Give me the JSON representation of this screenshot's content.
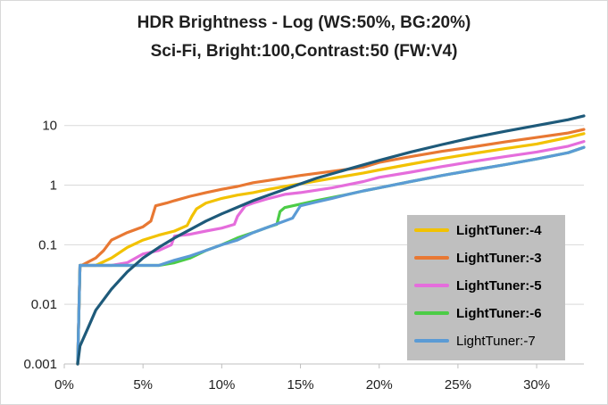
{
  "chart_data": {
    "type": "line",
    "title_lines": [
      "HDR Brightness - Log (WS:50%, BG:20%)",
      "Sci-Fi, Bright:100,Contrast:50 (FW:V4)"
    ],
    "xlabel": "",
    "ylabel": "",
    "x_scale": "linear",
    "y_scale": "log",
    "xlim": [
      0,
      33
    ],
    "ylim": [
      0.001,
      50
    ],
    "x_ticks": [
      0,
      5,
      10,
      15,
      20,
      25,
      30
    ],
    "x_tick_labels": [
      "0%",
      "5%",
      "10%",
      "15%",
      "20%",
      "25%",
      "30%"
    ],
    "y_ticks": [
      0.001,
      0.01,
      0.1,
      1,
      10
    ],
    "y_tick_labels": [
      "0.001",
      "0.01",
      "0.1",
      "1",
      "10"
    ],
    "grid": "horizontal",
    "legend_position": "lower-right",
    "series": [
      {
        "name": "LightTuner:-4",
        "color": "#f2c200",
        "bold": true,
        "x": [
          0.85,
          1.0,
          1.1,
          2.0,
          3.0,
          4.0,
          5.0,
          6.0,
          7.0,
          7.8,
          8.1,
          8.4,
          9.0,
          10.0,
          11.0,
          12.0,
          13.0,
          14.0,
          15.0,
          17.0,
          19.0,
          20.0,
          22.0,
          24.0,
          26.0,
          28.0,
          30.0,
          32.0,
          33.0
        ],
        "y": [
          0.001,
          0.045,
          0.045,
          0.045,
          0.06,
          0.09,
          0.12,
          0.145,
          0.17,
          0.21,
          0.3,
          0.4,
          0.5,
          0.6,
          0.68,
          0.75,
          0.85,
          0.95,
          1.05,
          1.3,
          1.6,
          1.8,
          2.25,
          2.8,
          3.4,
          4.1,
          4.9,
          6.3,
          7.3
        ]
      },
      {
        "name": "LightTuner:-3",
        "color": "#e87833",
        "bold": true,
        "x": [
          0.85,
          1.0,
          1.1,
          2.0,
          2.5,
          3.0,
          4.0,
          5.0,
          5.5,
          5.8,
          6.5,
          7.0,
          8.0,
          9.0,
          10.0,
          11.0,
          12.0,
          13.0,
          15.0,
          17.0,
          19.0,
          20.0,
          22.0,
          24.0,
          26.0,
          28.0,
          30.0,
          32.0,
          33.0
        ],
        "y": [
          0.001,
          0.045,
          0.045,
          0.06,
          0.08,
          0.12,
          0.16,
          0.2,
          0.25,
          0.45,
          0.5,
          0.55,
          0.65,
          0.75,
          0.85,
          0.95,
          1.1,
          1.2,
          1.45,
          1.7,
          2.0,
          2.4,
          3.0,
          3.7,
          4.4,
          5.3,
          6.3,
          7.5,
          8.6
        ]
      },
      {
        "name": "LightTuner:-5",
        "color": "#e56ddc",
        "bold": true,
        "x": [
          0.85,
          1.0,
          1.1,
          3.0,
          4.0,
          5.0,
          6.0,
          6.8,
          7.0,
          8.0,
          9.0,
          10.0,
          10.8,
          11.0,
          11.5,
          12.0,
          13.0,
          14.0,
          15.0,
          17.0,
          19.0,
          20.0,
          22.0,
          24.0,
          26.0,
          28.0,
          30.0,
          32.0,
          33.0
        ],
        "y": [
          0.001,
          0.045,
          0.045,
          0.045,
          0.05,
          0.07,
          0.08,
          0.1,
          0.14,
          0.15,
          0.17,
          0.19,
          0.22,
          0.3,
          0.45,
          0.5,
          0.6,
          0.7,
          0.75,
          0.9,
          1.15,
          1.35,
          1.65,
          2.05,
          2.5,
          3.0,
          3.6,
          4.5,
          5.4
        ]
      },
      {
        "name": "LightTuner:-6",
        "color": "#4ccc46",
        "bold": true,
        "x": [
          0.85,
          1.0,
          1.1,
          6.0,
          7.0,
          8.0,
          9.0,
          10.0,
          11.0,
          12.0,
          13.0,
          13.5,
          13.7,
          14.0,
          15.0,
          16.0,
          17.0,
          18.0,
          19.0,
          20.0,
          22.0,
          24.0,
          26.0,
          28.0,
          30.0,
          32.0,
          33.0
        ],
        "y": [
          0.001,
          0.045,
          0.045,
          0.045,
          0.05,
          0.06,
          0.08,
          0.1,
          0.13,
          0.16,
          0.2,
          0.22,
          0.36,
          0.42,
          0.48,
          0.55,
          0.62,
          0.7,
          0.8,
          0.9,
          1.15,
          1.45,
          1.8,
          2.2,
          2.75,
          3.5,
          4.3
        ]
      },
      {
        "name": "LightTuner:-7",
        "color": "#5b9bd5",
        "bold": false,
        "x": [
          0.85,
          1.0,
          1.1,
          6.0,
          7.0,
          8.0,
          9.0,
          10.0,
          11.0,
          12.0,
          13.0,
          14.0,
          14.5,
          15.0,
          16.0,
          17.0,
          18.0,
          19.0,
          20.0,
          22.0,
          24.0,
          26.0,
          28.0,
          30.0,
          32.0,
          33.0
        ],
        "y": [
          0.001,
          0.045,
          0.045,
          0.045,
          0.055,
          0.065,
          0.08,
          0.1,
          0.12,
          0.16,
          0.2,
          0.25,
          0.28,
          0.45,
          0.52,
          0.6,
          0.7,
          0.8,
          0.9,
          1.15,
          1.45,
          1.8,
          2.2,
          2.75,
          3.5,
          4.3
        ]
      },
      {
        "name": "",
        "color": "#1e5a7a",
        "bold": true,
        "in_legend": false,
        "x": [
          0.85,
          1.0,
          1.5,
          2.0,
          3.0,
          4.0,
          5.0,
          6.0,
          7.0,
          8.0,
          9.0,
          10.0,
          12.0,
          14.0,
          16.0,
          18.0,
          20.0,
          22.0,
          24.0,
          26.0,
          28.0,
          30.0,
          32.0,
          33.0
        ],
        "y": [
          0.001,
          0.002,
          0.004,
          0.008,
          0.018,
          0.035,
          0.06,
          0.09,
          0.13,
          0.18,
          0.25,
          0.33,
          0.55,
          0.85,
          1.3,
          1.85,
          2.6,
          3.6,
          4.8,
          6.3,
          8.0,
          10.0,
          12.5,
          14.5
        ]
      }
    ]
  }
}
